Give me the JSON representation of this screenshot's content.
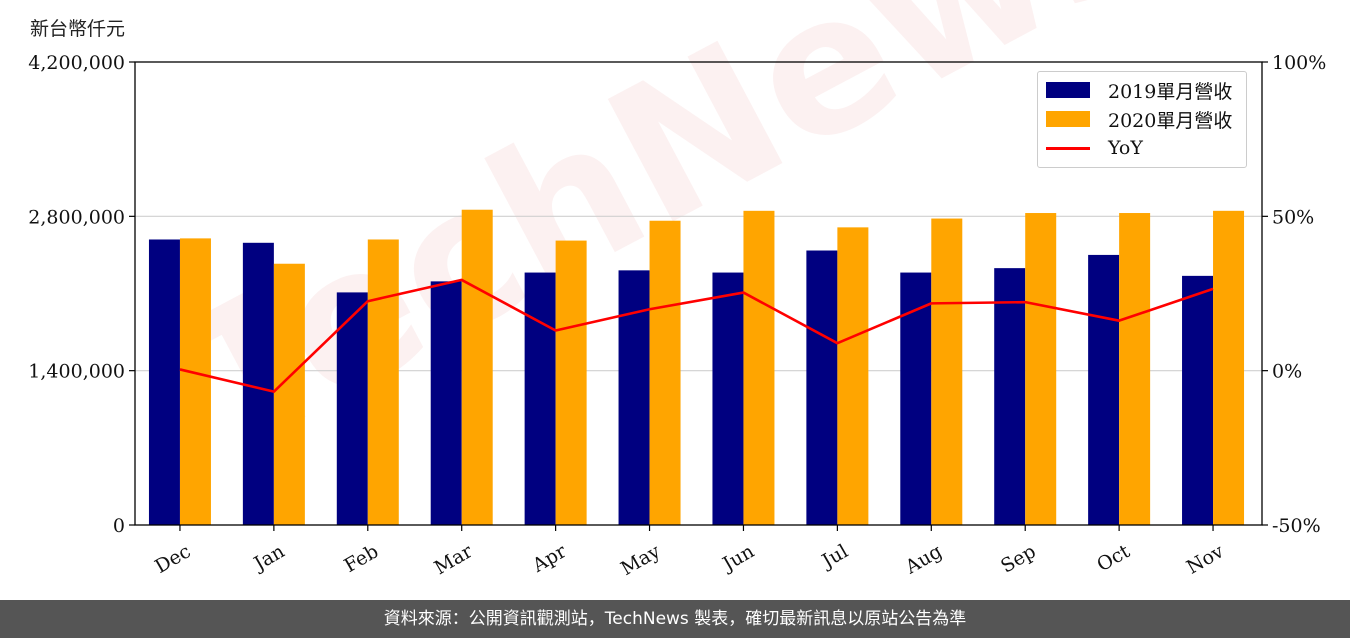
{
  "unit_label": "新台幣仟元",
  "watermark": "TechNews",
  "footer_text": "資料來源：公開資訊觀測站，TechNews 製表，確切最新訊息以原站公告為準",
  "colors": {
    "bar2019": "#000080",
    "bar2020": "#FFA500",
    "yoy": "#FF0000",
    "grid": "#d0d0d0"
  },
  "legend": [
    {
      "label": "2019單月營收",
      "type": "bar",
      "color": "#000080"
    },
    {
      "label": "2020單月營收",
      "type": "bar",
      "color": "#FFA500"
    },
    {
      "label": "YoY",
      "type": "line",
      "color": "#FF0000"
    }
  ],
  "chart_data": {
    "type": "bar",
    "categories": [
      "Dec",
      "Jan",
      "Feb",
      "Mar",
      "Apr",
      "May",
      "Jun",
      "Jul",
      "Aug",
      "Sep",
      "Oct",
      "Nov"
    ],
    "series": [
      {
        "name": "2019單月營收",
        "type": "bar",
        "axis": "left",
        "values": [
          2590000,
          2560000,
          2110000,
          2210000,
          2290000,
          2310000,
          2290000,
          2490000,
          2290000,
          2330000,
          2450000,
          2260000
        ]
      },
      {
        "name": "2020單月營收",
        "type": "bar",
        "axis": "left",
        "values": [
          2600000,
          2370000,
          2590000,
          2860000,
          2580000,
          2760000,
          2850000,
          2700000,
          2780000,
          2830000,
          2830000,
          2850000
        ]
      },
      {
        "name": "YoY",
        "type": "line",
        "axis": "right",
        "unit": "%",
        "values": [
          0.4,
          -6.8,
          22.5,
          29.4,
          13.0,
          19.9,
          25.3,
          8.9,
          21.8,
          22.2,
          16.2,
          26.5
        ]
      }
    ],
    "y_left": {
      "ylim": [
        0,
        4200000
      ],
      "ticks": [
        "0",
        "1,400,000",
        "2,800,000",
        "4,200,000"
      ],
      "tick_values": [
        0,
        1400000,
        2800000,
        4200000
      ]
    },
    "y_right": {
      "ylim": [
        -50,
        100
      ],
      "ticks": [
        "-50%",
        "0%",
        "50%",
        "100%"
      ],
      "tick_values": [
        -50,
        0,
        50,
        100
      ]
    },
    "grid": "horizontal",
    "legend_position": "top-right"
  }
}
